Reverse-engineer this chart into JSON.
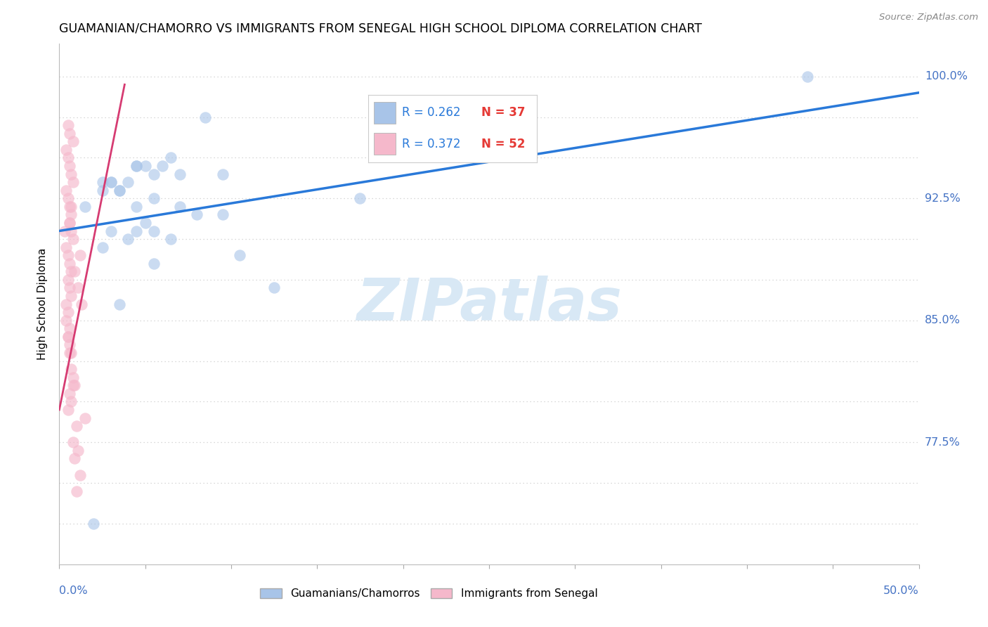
{
  "title": "GUAMANIAN/CHAMORRO VS IMMIGRANTS FROM SENEGAL HIGH SCHOOL DIPLOMA CORRELATION CHART",
  "source": "Source: ZipAtlas.com",
  "ylabel": "High School Diploma",
  "xlim": [
    0.0,
    50.0
  ],
  "ylim": [
    70.0,
    102.0
  ],
  "blue_scatter_x": [
    1.5,
    8.5,
    2.5,
    3.5,
    5.5,
    3.0,
    4.5,
    5.0,
    4.0,
    4.5,
    6.0,
    6.5,
    7.0,
    9.5,
    19.5,
    2.5,
    3.0,
    4.0,
    5.5,
    17.5,
    9.5,
    3.5,
    4.5,
    5.0,
    5.5,
    6.5,
    2.5,
    3.0,
    3.5,
    4.5,
    10.5,
    12.5,
    5.5,
    7.0,
    8.0,
    43.5,
    2.0
  ],
  "blue_scatter_y": [
    92.0,
    97.5,
    93.5,
    93.0,
    94.0,
    93.5,
    94.5,
    94.5,
    93.5,
    94.5,
    94.5,
    95.0,
    94.0,
    94.0,
    95.5,
    89.5,
    90.5,
    90.0,
    90.5,
    92.5,
    91.5,
    86.0,
    90.5,
    91.0,
    88.5,
    90.0,
    93.0,
    93.5,
    93.0,
    92.0,
    89.0,
    87.0,
    92.5,
    92.0,
    91.5,
    100.0,
    72.5
  ],
  "pink_scatter_x": [
    0.5,
    0.6,
    0.8,
    0.4,
    0.5,
    0.6,
    0.7,
    0.8,
    0.4,
    0.5,
    0.6,
    0.7,
    0.6,
    0.7,
    0.8,
    0.4,
    0.5,
    0.6,
    0.7,
    0.5,
    0.6,
    0.7,
    0.4,
    0.5,
    0.6,
    0.5,
    0.6,
    0.7,
    0.8,
    0.9,
    0.7,
    0.6,
    0.3,
    1.2,
    0.9,
    1.1,
    1.3,
    0.4,
    0.5,
    0.6,
    0.7,
    0.8,
    0.6,
    0.7,
    0.5,
    1.0,
    0.8,
    1.1,
    1.2,
    1.0,
    1.5,
    0.9
  ],
  "pink_scatter_y": [
    97.0,
    96.5,
    96.0,
    95.5,
    95.0,
    94.5,
    94.0,
    93.5,
    93.0,
    92.5,
    92.0,
    91.5,
    91.0,
    90.5,
    90.0,
    89.5,
    89.0,
    88.5,
    88.0,
    87.5,
    87.0,
    86.5,
    86.0,
    85.5,
    84.5,
    84.0,
    83.5,
    83.0,
    81.5,
    81.0,
    92.0,
    91.0,
    90.5,
    89.0,
    88.0,
    87.0,
    86.0,
    85.0,
    84.0,
    83.0,
    82.0,
    81.0,
    80.5,
    80.0,
    79.5,
    78.5,
    77.5,
    77.0,
    75.5,
    74.5,
    79.0,
    76.5
  ],
  "blue_line_x": [
    0.0,
    50.0
  ],
  "blue_line_y": [
    90.5,
    99.0
  ],
  "pink_line_x": [
    0.0,
    3.8
  ],
  "pink_line_y": [
    79.5,
    99.5
  ],
  "blue_scatter_color": "#A8C4E8",
  "pink_scatter_color": "#F5B8CB",
  "blue_line_color": "#2979D9",
  "pink_line_color": "#D63B72",
  "legend_R_blue": "R = 0.262",
  "legend_N_blue": "N = 37",
  "legend_R_pink": "R = 0.372",
  "legend_N_pink": "N = 52",
  "legend_text_color": "#2979D9",
  "legend_n_color": "#E53935",
  "watermark_text": "ZIPatlas",
  "watermark_color": "#D8E8F5",
  "grid_color": "#cccccc",
  "bg_color": "#ffffff",
  "title_fontsize": 12.5,
  "axis_value_color": "#4472C4",
  "bottom_legend_blue": "Guamanians/Chamorros",
  "bottom_legend_pink": "Immigrants from Senegal",
  "ytick_show": [
    77.5,
    85.0,
    92.5,
    100.0
  ],
  "ytick_all": [
    72.5,
    75.0,
    77.5,
    80.0,
    82.5,
    85.0,
    87.5,
    90.0,
    92.5,
    95.0,
    97.5,
    100.0
  ]
}
